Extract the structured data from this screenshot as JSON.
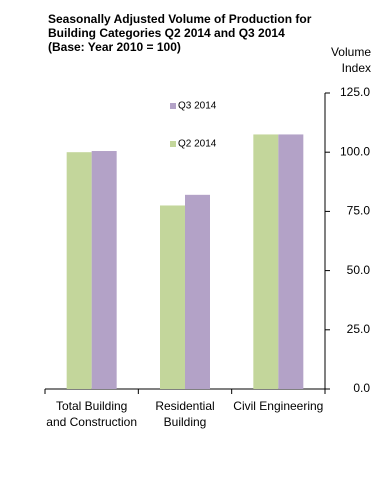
{
  "chart_data": {
    "type": "bar",
    "title": "Seasonally Adjusted Volume of Production for Building Categories Q2 2014 and Q3 2014",
    "subtitle": "(Base: Year 2010 = 100)",
    "y_axis_label": "Volume Index",
    "categories": [
      "Total Building and Construction",
      "Residential Building",
      "Civil Engineering"
    ],
    "series": [
      {
        "name": "Q2 2014",
        "color": "#c3d69b",
        "values": [
          100,
          77.5,
          107.5
        ]
      },
      {
        "name": "Q3 2014",
        "color": "#b3a2c7",
        "values": [
          100.5,
          82,
          107.5
        ]
      }
    ],
    "ylim": [
      0,
      125
    ],
    "yticks": [
      {
        "value": 0,
        "label": "0.0"
      },
      {
        "value": 25,
        "label": "25.0"
      },
      {
        "value": 50,
        "label": "50.0"
      },
      {
        "value": 75,
        "label": "75.0"
      },
      {
        "value": 100,
        "label": "100.0"
      },
      {
        "value": 125,
        "label": "125.0"
      }
    ]
  }
}
